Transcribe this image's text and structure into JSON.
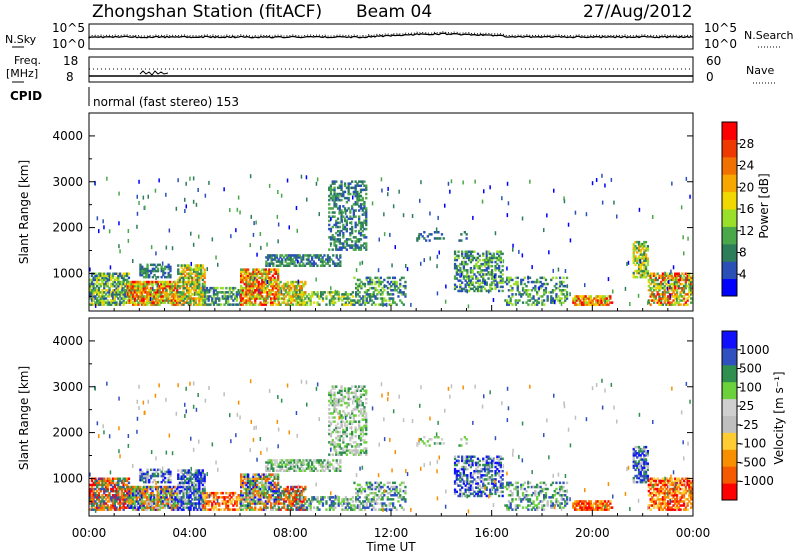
{
  "header": {
    "title": "Zhongshan Station (fitACF)",
    "beam": "Beam 04",
    "date": "27/Aug/2012"
  },
  "noise_panel": {
    "left_label": "N.Sky",
    "right_label": "N.Search",
    "left_ticks": [
      "10^5",
      "10^0"
    ],
    "right_ticks": [
      "10^5",
      "10^0"
    ]
  },
  "freq_panel": {
    "left_label_1": "Freq.",
    "left_label_2": "[MHz]",
    "right_label": "Nave",
    "left_ticks": [
      "18",
      "8"
    ],
    "right_ticks": [
      "60",
      "0"
    ],
    "cpid_label": "CPID",
    "cpid_text": "normal (fast stereo) 153"
  },
  "colors": {
    "power_scale": [
      "#0000ff",
      "#2a50b8",
      "#2e7d5a",
      "#4aa84a",
      "#9adf2a",
      "#f0d800",
      "#f6a800",
      "#f07000",
      "#ee3a00",
      "#ff0000"
    ],
    "velocity_scale": [
      "#ff0000",
      "#f55a00",
      "#f78f00",
      "#ffcc33",
      "#bfbfbf",
      "#cfcfcf",
      "#6bd23b",
      "#2f8f4f",
      "#3050c0",
      "#1010ff"
    ]
  },
  "chart_data": [
    {
      "type": "heatmap",
      "panel": "power",
      "ylabel": "Slant Range [km]",
      "yticks": [
        "1000",
        "2000",
        "3000",
        "4000"
      ],
      "ylim": [
        180,
        4500
      ],
      "xlim": [
        "00:00",
        "24:00"
      ],
      "colorbar": {
        "label": "Power [dB]",
        "ticks": [
          "4",
          "8",
          "12",
          "16",
          "20",
          "24",
          "28"
        ],
        "range": [
          0,
          32
        ]
      }
    },
    {
      "type": "heatmap",
      "panel": "velocity",
      "xlabel": "Time UT",
      "xticks": [
        "00:00",
        "04:00",
        "08:00",
        "12:00",
        "16:00",
        "20:00",
        "00:00"
      ],
      "ylabel": "Slant Range [km]",
      "yticks": [
        "1000",
        "2000",
        "3000",
        "4000"
      ],
      "ylim": [
        180,
        4500
      ],
      "xlim": [
        "00:00",
        "24:00"
      ],
      "colorbar": {
        "label": "Velocity [m s⁻¹]",
        "ticks": [
          "1000",
          "500",
          "100",
          "25",
          "-25",
          "-100",
          "-500",
          "-1000"
        ]
      }
    }
  ]
}
